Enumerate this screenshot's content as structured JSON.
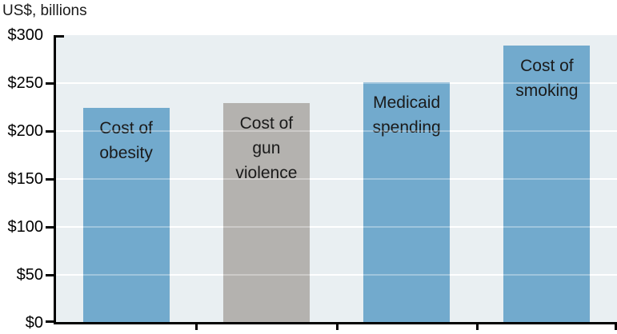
{
  "chart_data": {
    "type": "bar",
    "title": "US$, billions",
    "ylabel": "US$, billions",
    "xlabel": "",
    "categories": [
      "Cost of obesity",
      "Cost of gun violence",
      "Medicaid spending",
      "Cost of smoking"
    ],
    "values": [
      224,
      229,
      251,
      289
    ],
    "bar_label_lines": [
      [
        "Cost of",
        "obesity"
      ],
      [
        "Cost of",
        "gun",
        "violence"
      ],
      [
        "Medicaid",
        "spending"
      ],
      [
        "Cost of",
        "smoking"
      ]
    ],
    "colors": [
      "#72aacd",
      "#b4b2af",
      "#72aacd",
      "#72aacd"
    ],
    "ylim": [
      0,
      300
    ],
    "yticks": {
      "values": [
        0,
        50,
        100,
        150,
        200,
        250,
        300
      ],
      "labels": [
        "$0",
        "$50",
        "$100",
        "$150",
        "$200",
        "$250",
        "$300"
      ]
    },
    "grid": "horizontal-white-lines",
    "legend": "none (category labels rendered inside bars)"
  },
  "palette": {
    "plot_background": "#e9eff2",
    "gridline": "#ffffff",
    "axis": "#000000",
    "bar_blue": "#72aacd",
    "bar_gray": "#b4b2af",
    "text": "#1a1a1a"
  }
}
